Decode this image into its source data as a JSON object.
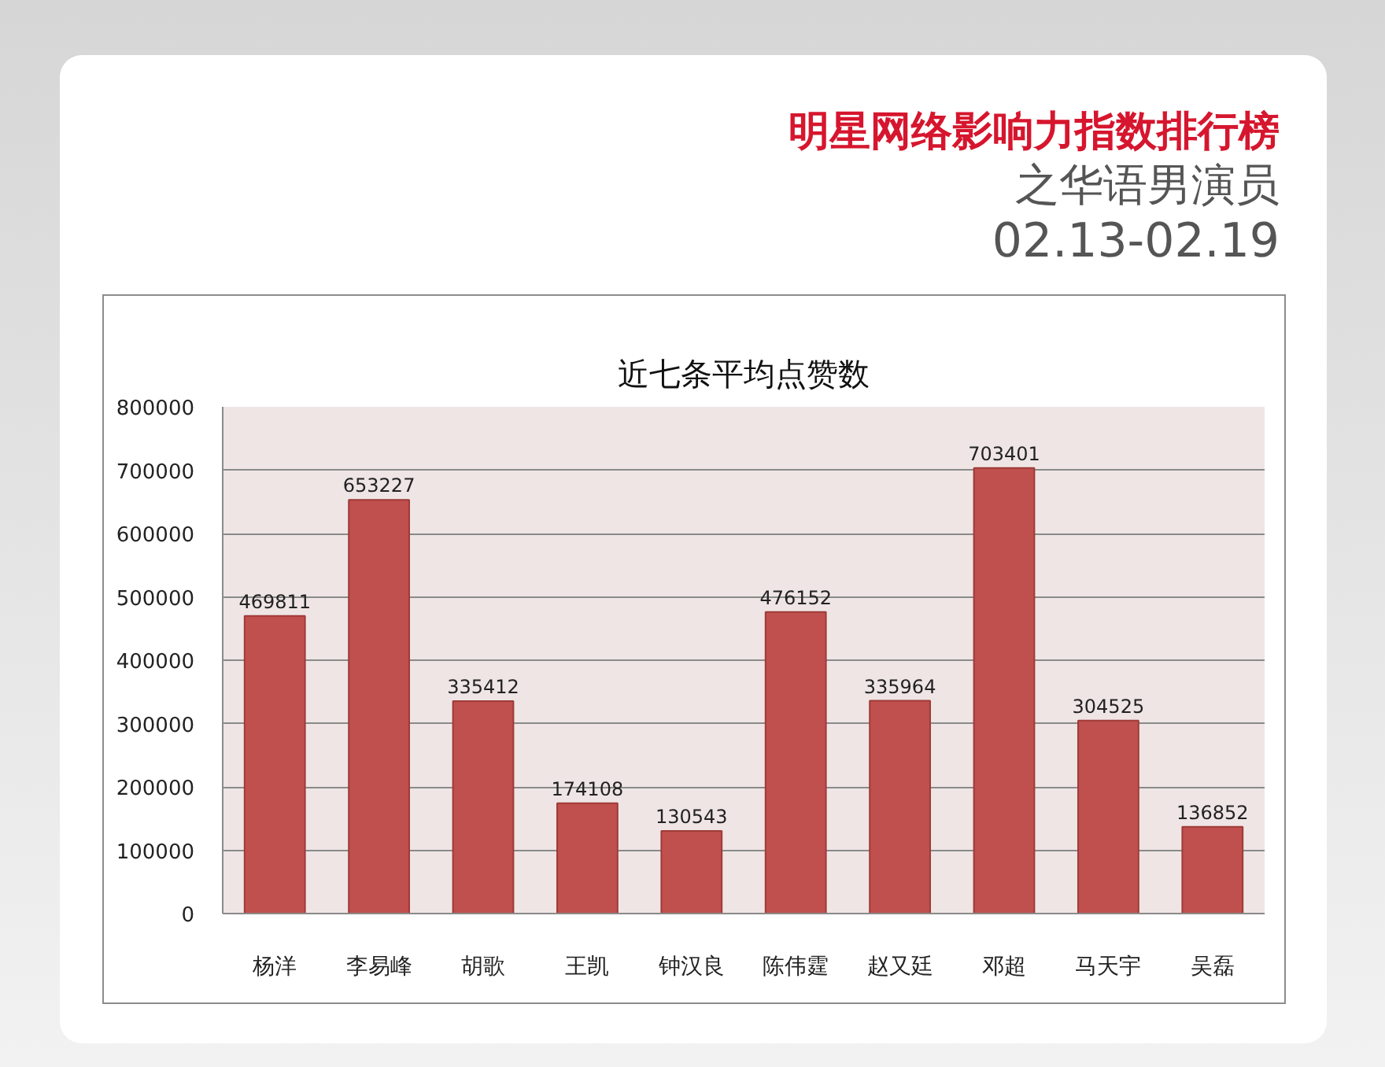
{
  "chart_data": {
    "type": "bar",
    "title": "近七条平均点赞数",
    "annotations": [
      "明星网络影响力指数排行榜",
      "之华语男演员",
      "02.13-02.19"
    ],
    "categories": [
      "杨洋",
      "李易峰",
      "胡歌",
      "王凯",
      "钟汉良",
      "陈伟霆",
      "赵又廷",
      "邓超",
      "马天宇",
      "吴磊"
    ],
    "values": [
      469811,
      653227,
      335412,
      174108,
      130543,
      476152,
      335964,
      703401,
      304525,
      136852
    ],
    "color": "#c0504d",
    "ylim": [
      0,
      800000
    ],
    "yticks": [
      0,
      100000,
      200000,
      300000,
      400000,
      500000,
      600000,
      700000,
      800000
    ],
    "grid": "y",
    "data_labels": true
  }
}
